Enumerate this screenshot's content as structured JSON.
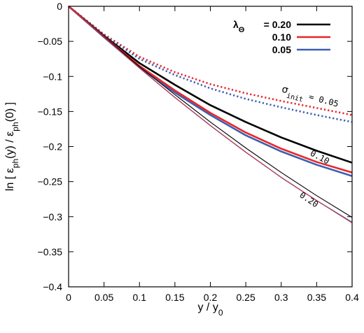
{
  "chart_data": {
    "type": "line",
    "xlabel": {
      "base": "y / y",
      "sub": "0"
    },
    "ylabel": {
      "parts": [
        {
          "t": "ln [ ε"
        },
        {
          "t": "ph",
          "sub": true
        },
        {
          "t": "(y) / ε"
        },
        {
          "t": "ph",
          "sub": true
        },
        {
          "t": "(0) ]"
        }
      ]
    },
    "xlim": [
      0,
      0.4
    ],
    "ylim": [
      -0.4,
      0
    ],
    "xticks": [
      0,
      0.05,
      0.1,
      0.15,
      0.2,
      0.25,
      0.3,
      0.35,
      0.4
    ],
    "xtick_labels": [
      "0",
      "0.05",
      "0.1",
      "0.15",
      "0.2",
      "0.25",
      "0.3",
      "0.35",
      "0.4"
    ],
    "yticks": [
      0,
      -0.05,
      -0.1,
      -0.15,
      -0.2,
      -0.25,
      -0.3,
      -0.35,
      -0.4
    ],
    "ytick_labels": [
      "0",
      "−0.05",
      "−0.1",
      "−0.15",
      "−0.2",
      "−0.25",
      "−0.3",
      "−0.35",
      "−0.4"
    ],
    "grid": false,
    "legend": {
      "placement": "top-right",
      "symbol": "λ",
      "symbol_sub": "Θ",
      "entries": [
        {
          "label": "= 0.20",
          "color": "#000000"
        },
        {
          "label": "0.10",
          "color": "#e8262a"
        },
        {
          "label": "0.05",
          "color": "#3b5fb0"
        }
      ]
    },
    "annotations": [
      {
        "prefix": "σ",
        "sub": "init",
        "text": " = 0.05",
        "x": 0.3,
        "y": -0.122,
        "angle": 15
      },
      {
        "text": "0.10",
        "x": 0.34,
        "y": -0.212,
        "angle": 28
      },
      {
        "text": "0.20",
        "x": 0.325,
        "y": -0.271,
        "angle": 34
      }
    ],
    "series": [
      {
        "color": "#e8262a",
        "width": 2.6,
        "dash": "dot",
        "x": [
          0,
          0.05,
          0.1,
          0.15,
          0.2,
          0.25,
          0.3,
          0.35,
          0.4
        ],
        "y": [
          0,
          -0.04,
          -0.072,
          -0.094,
          -0.111,
          -0.124,
          -0.135,
          -0.145,
          -0.155
        ]
      },
      {
        "color": "#3b5fb0",
        "width": 2.6,
        "dash": "dot",
        "x": [
          0,
          0.05,
          0.1,
          0.15,
          0.2,
          0.25,
          0.3,
          0.35,
          0.4
        ],
        "y": [
          0,
          -0.041,
          -0.075,
          -0.098,
          -0.117,
          -0.132,
          -0.144,
          -0.155,
          -0.165
        ]
      },
      {
        "color": "#000000",
        "width": 2.6,
        "dash": "solid",
        "x": [
          0,
          0.05,
          0.1,
          0.15,
          0.2,
          0.25,
          0.3,
          0.35,
          0.4
        ],
        "y": [
          0,
          -0.042,
          -0.081,
          -0.112,
          -0.141,
          -0.165,
          -0.187,
          -0.206,
          -0.223
        ]
      },
      {
        "color": "#3b5fb0",
        "width": 2.6,
        "dash": "solid",
        "x": [
          0,
          0.05,
          0.1,
          0.15,
          0.2,
          0.25,
          0.3,
          0.35,
          0.4
        ],
        "y": [
          0,
          -0.044,
          -0.087,
          -0.123,
          -0.155,
          -0.184,
          -0.207,
          -0.226,
          -0.242
        ]
      },
      {
        "color": "#e8262a",
        "width": 2.6,
        "dash": "solid",
        "x": [
          0,
          0.05,
          0.1,
          0.15,
          0.2,
          0.25,
          0.3,
          0.35,
          0.4
        ],
        "y": [
          0,
          -0.043,
          -0.085,
          -0.12,
          -0.152,
          -0.18,
          -0.203,
          -0.222,
          -0.237
        ]
      },
      {
        "color": "#000000",
        "width": 1.1,
        "dash": "solid",
        "x": [
          0,
          0.05,
          0.1,
          0.15,
          0.2,
          0.25,
          0.3,
          0.35,
          0.4
        ],
        "y": [
          0,
          -0.043,
          -0.086,
          -0.126,
          -0.165,
          -0.202,
          -0.237,
          -0.27,
          -0.301
        ]
      },
      {
        "color": "#3b5fb0",
        "width": 1.4,
        "dash": "solid",
        "x": [
          0,
          0.05,
          0.1,
          0.15,
          0.2,
          0.25,
          0.3,
          0.35,
          0.4
        ],
        "y": [
          0,
          -0.044,
          -0.088,
          -0.13,
          -0.17,
          -0.208,
          -0.244,
          -0.277,
          -0.308
        ]
      },
      {
        "color": "#e8262a",
        "width": 0.9,
        "dash": "solid",
        "x": [
          0,
          0.05,
          0.1,
          0.15,
          0.2,
          0.25,
          0.3,
          0.35,
          0.4
        ],
        "y": [
          0,
          -0.044,
          -0.088,
          -0.13,
          -0.17,
          -0.208,
          -0.244,
          -0.277,
          -0.309
        ]
      }
    ]
  }
}
